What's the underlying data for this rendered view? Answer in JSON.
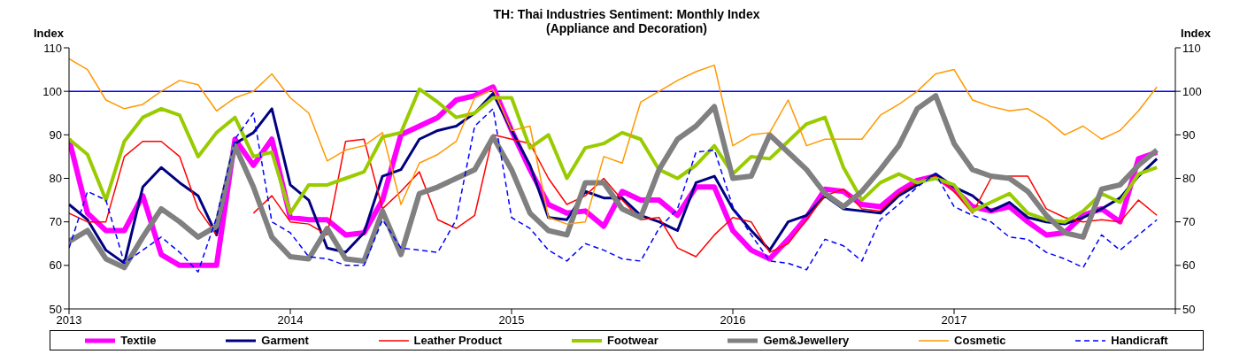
{
  "chart_data": {
    "type": "line",
    "title": "TH: Thai Industries Sentiment: Monthly Index\n(Appliance and Decoration)",
    "ylabel": "Index",
    "y2label": "Index",
    "x": [
      "2013-01",
      "2013-02",
      "2013-03",
      "2013-04",
      "2013-05",
      "2013-06",
      "2013-07",
      "2013-08",
      "2013-09",
      "2013-10",
      "2013-11",
      "2013-12",
      "2014-01",
      "2014-02",
      "2014-03",
      "2014-04",
      "2014-05",
      "2014-06",
      "2014-07",
      "2014-08",
      "2014-09",
      "2014-10",
      "2014-11",
      "2014-12",
      "2015-01",
      "2015-02",
      "2015-03",
      "2015-04",
      "2015-05",
      "2015-06",
      "2015-07",
      "2015-08",
      "2015-09",
      "2015-10",
      "2015-11",
      "2015-12",
      "2016-01",
      "2016-02",
      "2016-03",
      "2016-04",
      "2016-05",
      "2016-06",
      "2016-07",
      "2016-08",
      "2016-09",
      "2016-10",
      "2016-11",
      "2016-12",
      "2017-01",
      "2017-02",
      "2017-03",
      "2017-04",
      "2017-05",
      "2017-06",
      "2017-07",
      "2017-08",
      "2017-09",
      "2017-10",
      "2017-11",
      "2017-12"
    ],
    "series": [
      {
        "name": "Textile",
        "color": "#ff00ff",
        "values": [
          89,
          72,
          68,
          68,
          76,
          62.5,
          60,
          60,
          60,
          89,
          83,
          89,
          71,
          70.5,
          70.5,
          67,
          67.5,
          75,
          90,
          92,
          94,
          98,
          99,
          101,
          91,
          82,
          74,
          72,
          72.5,
          69,
          77,
          75,
          75,
          71.5,
          78,
          78,
          68,
          63.5,
          61.5,
          66,
          71,
          77.5,
          77,
          74,
          73.5,
          77,
          79.5,
          80.5,
          77.5,
          73.5,
          72.5,
          73.5,
          70,
          67,
          67.5,
          71.5,
          73,
          70,
          84.5,
          86
        ]
      },
      {
        "name": "Garment",
        "color": "#000080",
        "values": [
          74,
          70.5,
          63.5,
          60.5,
          78,
          82.5,
          79,
          76,
          67,
          88,
          90.5,
          96,
          78.5,
          75,
          64,
          63,
          67.5,
          80.5,
          82,
          89,
          91,
          92,
          95,
          99.5,
          91,
          83,
          71,
          70.5,
          77,
          75.5,
          75.5,
          71.5,
          70,
          68,
          79,
          80.5,
          73,
          68,
          63.5,
          70,
          71.5,
          76,
          73,
          72.5,
          72,
          76,
          78.5,
          81,
          78,
          76,
          72.5,
          74.5,
          71,
          70,
          69.5,
          71,
          73,
          75.5,
          80.5,
          84.5
        ]
      },
      {
        "name": "Leather Product",
        "color": "#ff0000",
        "values": [
          72,
          70,
          70,
          85,
          88.5,
          88.5,
          85,
          73,
          67,
          null,
          72,
          76,
          70,
          69.5,
          67,
          88.5,
          89,
          73,
          77,
          81.5,
          70.5,
          68.5,
          71.5,
          90,
          89,
          88,
          80,
          74,
          76,
          80,
          75,
          70.5,
          71,
          64,
          62,
          67,
          71,
          70,
          63,
          65,
          70.5,
          76,
          77.5,
          73,
          72.5,
          76.5,
          79,
          80.5,
          77,
          72,
          80,
          80.5,
          80.5,
          73,
          71,
          70,
          70.5,
          70,
          75,
          71.5
        ]
      },
      {
        "name": "Footwear",
        "color": "#99cc00",
        "values": [
          89,
          85.5,
          75,
          88.5,
          94,
          96,
          94.5,
          85,
          90.5,
          94,
          85,
          86,
          72,
          78.5,
          78.5,
          80,
          81.5,
          89.5,
          90.5,
          100.5,
          97.5,
          94,
          95,
          98.5,
          98.5,
          87,
          90,
          80,
          87,
          88,
          90.5,
          89,
          82,
          80,
          83,
          87.5,
          81,
          85,
          84.5,
          88.5,
          92.5,
          94,
          82.5,
          75,
          79,
          81,
          79,
          80,
          78.5,
          72.5,
          74.5,
          76.5,
          72,
          70.5,
          70,
          72.5,
          76.5,
          74.5,
          81,
          82.5
        ]
      },
      {
        "name": "Gem&Jewellery",
        "color": "#808080",
        "values": [
          65.5,
          68,
          61.5,
          59.5,
          66.5,
          73,
          70,
          66.5,
          69,
          87.5,
          78,
          66.5,
          62,
          61.5,
          68.5,
          61.5,
          61,
          72.5,
          62.5,
          76.5,
          78,
          80,
          82,
          89.5,
          82,
          72,
          68,
          67,
          79,
          79,
          73,
          71,
          82,
          89,
          92,
          96.5,
          80,
          80.5,
          90,
          86,
          82,
          76.5,
          73.5,
          77,
          82,
          87.5,
          96,
          99,
          88,
          82,
          80.5,
          80,
          77,
          71.5,
          67.5,
          66.5,
          77.5,
          78.5,
          83,
          86.5
        ]
      },
      {
        "name": "Cosmetic",
        "color": "#ff9900",
        "values": [
          107.5,
          105,
          98,
          96,
          97,
          100,
          102.5,
          101.5,
          95.5,
          98.5,
          100,
          104,
          98.5,
          95,
          84,
          86.5,
          87.5,
          90.5,
          74,
          83.5,
          85.5,
          88.5,
          98.5,
          100.5,
          91,
          92,
          71,
          69.5,
          70,
          85,
          83.5,
          97.5,
          100,
          102.5,
          104.5,
          106,
          87.5,
          90,
          90.5,
          98,
          87.5,
          89,
          89,
          89,
          94.5,
          97,
          100,
          104,
          105,
          98,
          96.5,
          95.5,
          96,
          93.5,
          90,
          92,
          89,
          91,
          95.5,
          101
        ]
      },
      {
        "name": "Handicraft",
        "color": "#0000ff",
        "line_style": "dashed",
        "values": [
          64,
          77,
          75,
          60.5,
          63.5,
          66.5,
          63,
          58.5,
          71,
          89,
          95,
          70,
          67.5,
          62,
          61.5,
          60,
          60,
          70.5,
          64,
          63.5,
          63,
          70.5,
          92,
          96,
          71,
          68.5,
          63.5,
          61,
          65,
          63.5,
          61.5,
          61,
          68.5,
          73,
          86,
          86.5,
          73.5,
          67,
          61,
          60.5,
          59,
          66,
          64.5,
          61,
          70.5,
          74,
          78,
          81,
          73.5,
          71.5,
          70,
          66.5,
          66,
          63,
          61.5,
          59.5,
          67,
          63.5,
          67,
          70.5
        ]
      }
    ],
    "xlim": [
      "2013-01",
      "2018-01"
    ],
    "xticks": [
      {
        "value": "2013",
        "label": "2013"
      },
      {
        "value": "2014",
        "label": "2014"
      },
      {
        "value": "2015",
        "label": "2015"
      },
      {
        "value": "2016",
        "label": "2016"
      },
      {
        "value": "2017",
        "label": "2017"
      },
      {
        "value": "2018",
        "label": null
      }
    ],
    "ylim": [
      50,
      110
    ],
    "yticks": [
      50,
      60,
      70,
      80,
      90,
      100,
      110
    ],
    "y2lim": [
      50,
      110
    ],
    "y2ticks": [
      50,
      60,
      70,
      80,
      90,
      100,
      110
    ],
    "ref_lines": [
      {
        "axis": "y",
        "value": 100,
        "color": "#0000ff",
        "line_style": "solid"
      }
    ],
    "grid": false,
    "legend": "bottom",
    "marker": "none"
  }
}
